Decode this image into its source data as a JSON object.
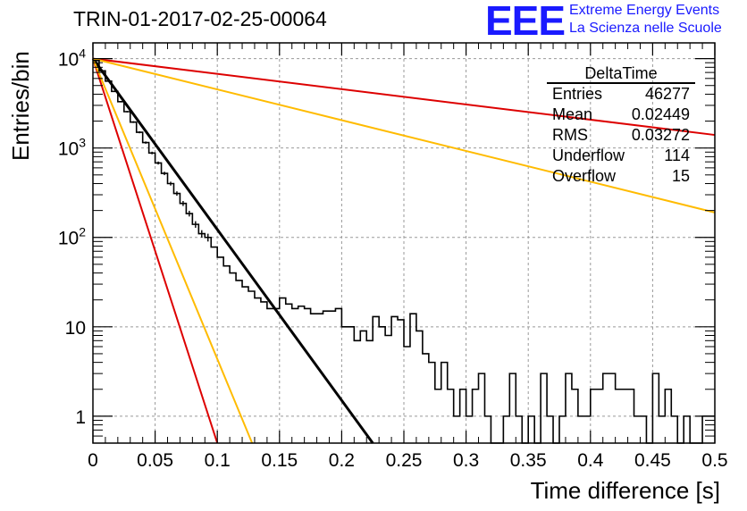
{
  "title": "TRIN-01-2017-02-25-00064",
  "logo": {
    "mark": "EEE",
    "line1": "Extreme Energy Events",
    "line2": "La Scienza nelle Scuole"
  },
  "stats": {
    "name": "DeltaTime",
    "rows": [
      {
        "label": "Entries",
        "value": "46277"
      },
      {
        "label": "Mean",
        "value": "0.02449"
      },
      {
        "label": "RMS",
        "value": "0.03272"
      },
      {
        "label": "Underflow",
        "value": "114"
      },
      {
        "label": "Overflow",
        "value": "15"
      }
    ]
  },
  "chart_data": {
    "type": "line",
    "xlabel": "Time difference [s]",
    "ylabel": "Entries/bin",
    "xlim": [
      0,
      0.5
    ],
    "ylim": [
      0.5,
      15000
    ],
    "yscale": "log",
    "grid": true,
    "x_ticks": [
      "0",
      "0.05",
      "0.1",
      "0.15",
      "0.2",
      "0.25",
      "0.3",
      "0.35",
      "0.4",
      "0.45",
      "0.5"
    ],
    "y_ticks": [
      {
        "value": 1,
        "label": "1"
      },
      {
        "value": 10,
        "label": "10"
      },
      {
        "value": 100,
        "label": "10^2"
      },
      {
        "value": 1000,
        "label": "10^3"
      },
      {
        "value": 10000,
        "label": "10^4"
      }
    ],
    "histogram": {
      "name": "DeltaTime",
      "bin_width": 0.005,
      "color": "#000000",
      "values": [
        9500,
        7300,
        5600,
        4300,
        3300,
        2550,
        1950,
        1500,
        1150,
        880,
        680,
        520,
        400,
        310,
        240,
        185,
        140,
        110,
        100,
        78,
        60,
        48,
        40,
        33,
        28,
        25,
        21,
        19,
        16,
        16,
        21,
        18,
        16,
        17,
        16,
        14,
        14,
        15,
        15,
        16,
        10,
        10,
        7,
        9,
        7,
        13,
        10,
        8,
        13,
        12,
        6,
        14,
        9,
        5,
        4,
        2,
        4,
        2,
        1,
        2,
        1,
        2,
        3,
        1,
        0.5,
        0.5,
        1,
        3,
        1,
        0.5,
        1,
        0.5,
        3,
        1,
        0.5,
        1,
        3,
        2,
        1,
        1,
        2,
        2,
        3,
        3,
        2,
        2,
        2,
        1,
        1,
        0.5,
        3,
        1,
        2,
        1,
        0.5,
        1,
        0.5,
        0.5,
        1,
        1
      ]
    },
    "fits": [
      {
        "color": "#000000",
        "x": [
          0,
          0.225
        ],
        "y": [
          10000,
          0.5
        ]
      },
      {
        "color": "#dd0000",
        "x": [
          0,
          0.5
        ],
        "y": [
          10000,
          1400
        ]
      },
      {
        "color": "#ffbb00",
        "x": [
          0,
          0.5
        ],
        "y": [
          10000,
          190
        ]
      },
      {
        "color": "#dd0000",
        "x": [
          0,
          0.1
        ],
        "y": [
          10000,
          0.5
        ]
      },
      {
        "color": "#ffbb00",
        "x": [
          0,
          0.128
        ],
        "y": [
          10000,
          0.5
        ]
      }
    ]
  }
}
